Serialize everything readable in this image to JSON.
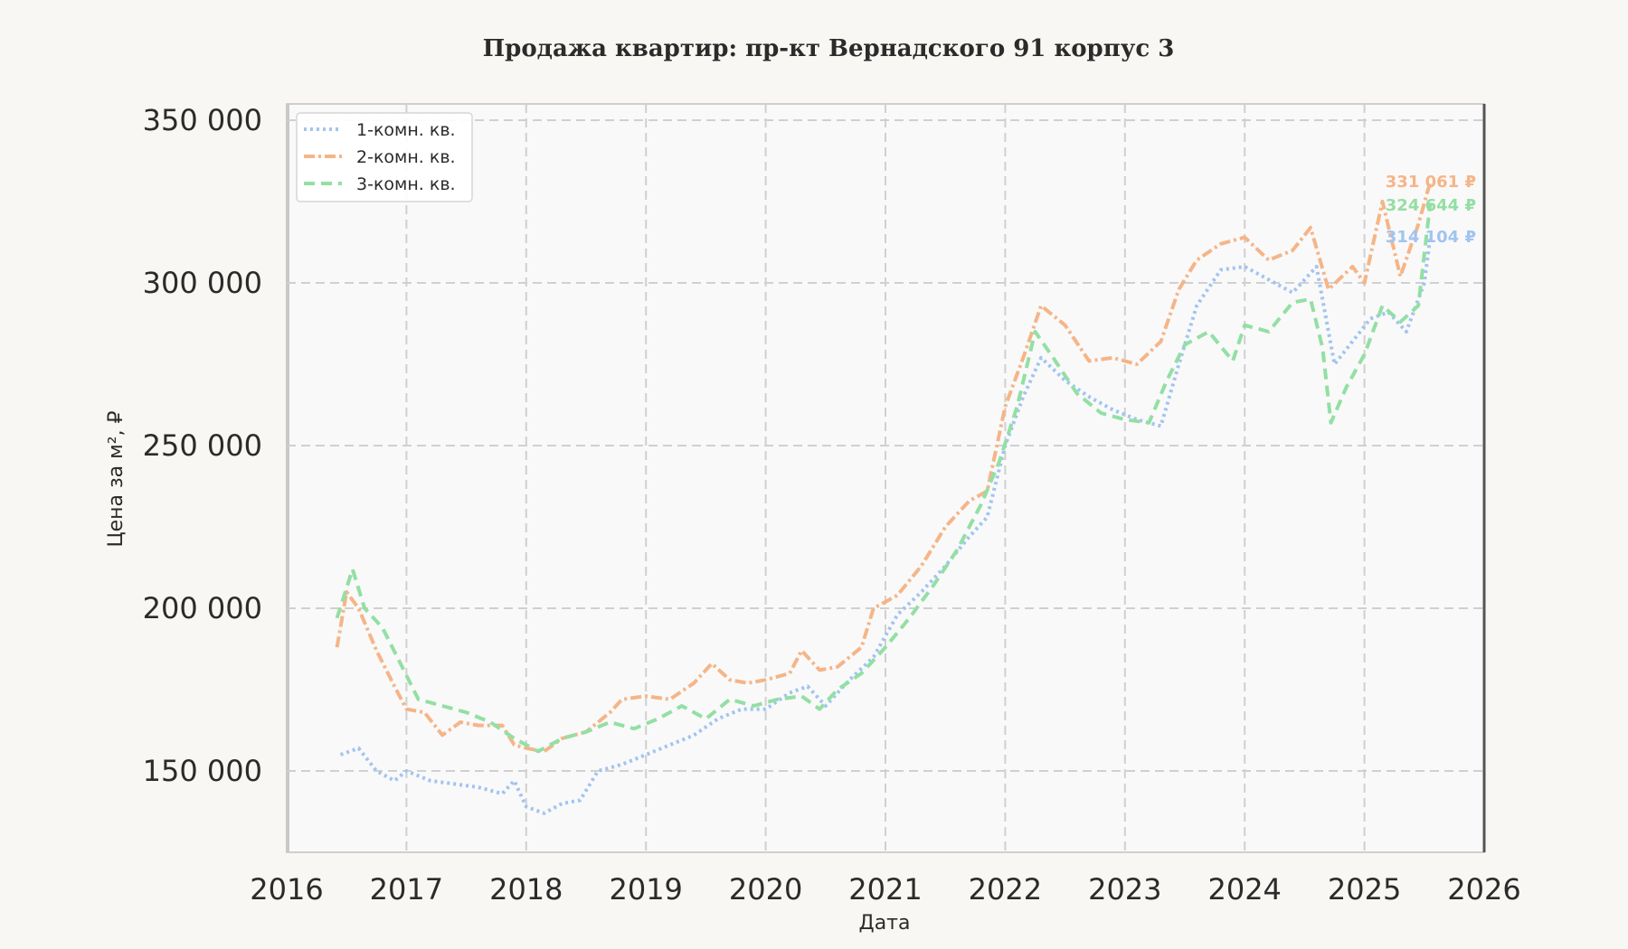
{
  "chart_data": {
    "type": "line",
    "title": "Продажа квартир: пр-кт Вернадского 91 корпус 3",
    "xlabel": "Дата",
    "ylabel": "Цена за м², ₽",
    "xlim": [
      2016,
      2026
    ],
    "ylim": [
      125000,
      355000
    ],
    "x_ticks": [
      2016,
      2017,
      2018,
      2019,
      2020,
      2021,
      2022,
      2023,
      2024,
      2025,
      2026
    ],
    "x_tick_labels": [
      "2016",
      "2017",
      "2018",
      "2019",
      "2020",
      "2021",
      "2022",
      "2023",
      "2024",
      "2025",
      "2026"
    ],
    "y_ticks": [
      150000,
      200000,
      250000,
      300000,
      350000
    ],
    "y_tick_labels": [
      "150 000",
      "200 000",
      "250 000",
      "300 000",
      "350 000"
    ],
    "grid": true,
    "legend_position": "top-left",
    "series": [
      {
        "name": "1-комн. кв.",
        "color": "#a1c4f0",
        "dash": "dotted",
        "end_label": "314 104 ₽",
        "x": [
          2016.45,
          2016.6,
          2016.75,
          2016.9,
          2017.0,
          2017.2,
          2017.4,
          2017.6,
          2017.8,
          2017.9,
          2018.0,
          2018.15,
          2018.3,
          2018.45,
          2018.6,
          2018.8,
          2019.0,
          2019.2,
          2019.4,
          2019.6,
          2019.8,
          2020.0,
          2020.2,
          2020.35,
          2020.5,
          2020.7,
          2020.9,
          2021.1,
          2021.3,
          2021.5,
          2021.7,
          2021.85,
          2022.0,
          2022.15,
          2022.3,
          2022.5,
          2022.7,
          2022.9,
          2023.1,
          2023.3,
          2023.45,
          2023.6,
          2023.8,
          2024.0,
          2024.2,
          2024.4,
          2024.6,
          2024.75,
          2024.9,
          2025.05,
          2025.2,
          2025.35,
          2025.5,
          2025.55
        ],
        "y": [
          155000,
          157000,
          150000,
          147000,
          150000,
          147000,
          146000,
          145000,
          143000,
          147000,
          139000,
          137000,
          140000,
          141000,
          150000,
          152000,
          155000,
          158000,
          161000,
          166000,
          169000,
          169000,
          174000,
          176000,
          170000,
          178000,
          185000,
          198000,
          205000,
          213000,
          222000,
          228000,
          250000,
          265000,
          277000,
          270000,
          265000,
          261000,
          258000,
          256000,
          275000,
          293000,
          304000,
          305000,
          301000,
          297000,
          305000,
          275000,
          282000,
          289000,
          291000,
          285000,
          300000,
          314104
        ]
      },
      {
        "name": "2-комн. кв.",
        "color": "#f5b588",
        "dash": "dashdot",
        "end_label": "331 061 ₽",
        "x": [
          2016.42,
          2016.5,
          2016.6,
          2016.75,
          2016.9,
          2017.0,
          2017.15,
          2017.3,
          2017.45,
          2017.6,
          2017.8,
          2017.9,
          2018.0,
          2018.15,
          2018.3,
          2018.5,
          2018.7,
          2018.8,
          2019.0,
          2019.2,
          2019.4,
          2019.55,
          2019.7,
          2019.85,
          2020.0,
          2020.2,
          2020.3,
          2020.45,
          2020.6,
          2020.8,
          2020.9,
          2021.1,
          2021.3,
          2021.5,
          2021.7,
          2021.85,
          2022.0,
          2022.15,
          2022.3,
          2022.5,
          2022.7,
          2022.9,
          2023.1,
          2023.3,
          2023.45,
          2023.6,
          2023.8,
          2024.0,
          2024.2,
          2024.4,
          2024.55,
          2024.7,
          2024.9,
          2025.0,
          2025.15,
          2025.3,
          2025.45,
          2025.55
        ],
        "y": [
          188000,
          205000,
          200000,
          187000,
          176000,
          169000,
          168000,
          161000,
          165000,
          164000,
          164000,
          158000,
          157000,
          156000,
          160000,
          162000,
          168000,
          172000,
          173000,
          172000,
          177000,
          183000,
          178000,
          177000,
          178000,
          180000,
          187000,
          181000,
          182000,
          188000,
          200000,
          204000,
          213000,
          225000,
          233000,
          236000,
          262000,
          277000,
          293000,
          287000,
          276000,
          277000,
          275000,
          282000,
          298000,
          307000,
          312000,
          314000,
          307000,
          310000,
          317000,
          298000,
          305000,
          300000,
          325000,
          302000,
          318000,
          331061
        ]
      },
      {
        "name": "3-комн. кв.",
        "color": "#93dfa4",
        "dash": "dashed",
        "end_label": "324 644 ₽",
        "x": [
          2016.42,
          2016.55,
          2016.65,
          2016.8,
          2016.95,
          2017.1,
          2017.3,
          2017.5,
          2017.7,
          2017.9,
          2018.1,
          2018.3,
          2018.5,
          2018.7,
          2018.9,
          2019.1,
          2019.3,
          2019.5,
          2019.7,
          2019.9,
          2020.1,
          2020.3,
          2020.45,
          2020.6,
          2020.8,
          2021.0,
          2021.2,
          2021.4,
          2021.6,
          2021.8,
          2021.95,
          2022.1,
          2022.25,
          2022.4,
          2022.6,
          2022.8,
          2023.0,
          2023.2,
          2023.35,
          2023.5,
          2023.7,
          2023.9,
          2024.0,
          2024.2,
          2024.4,
          2024.55,
          2024.65,
          2024.72,
          2024.85,
          2025.0,
          2025.15,
          2025.3,
          2025.45,
          2025.55
        ],
        "y": [
          197000,
          212000,
          200000,
          194000,
          183000,
          172000,
          170000,
          168000,
          165000,
          160000,
          156000,
          160000,
          162000,
          165000,
          163000,
          166000,
          170000,
          166000,
          172000,
          170000,
          172000,
          173000,
          169000,
          175000,
          180000,
          188000,
          197000,
          207000,
          218000,
          232000,
          245000,
          262000,
          285000,
          277000,
          266000,
          260000,
          258000,
          257000,
          270000,
          281000,
          285000,
          276000,
          287000,
          285000,
          294000,
          295000,
          280000,
          257000,
          268000,
          278000,
          293000,
          288000,
          293000,
          324644
        ]
      }
    ]
  }
}
